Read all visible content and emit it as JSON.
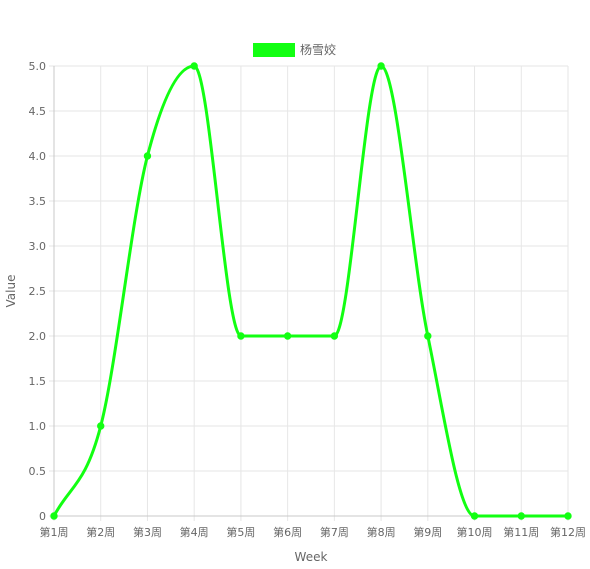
{
  "chart_data": {
    "type": "line",
    "categories": [
      "第1周",
      "第2周",
      "第3周",
      "第4周",
      "第5周",
      "第6周",
      "第7周",
      "第8周",
      "第9周",
      "第10周",
      "第11周",
      "第12周"
    ],
    "series": [
      {
        "name": "杨雪姣",
        "values": [
          0,
          1,
          4,
          5,
          2,
          2,
          2,
          5,
          2,
          0,
          0,
          0
        ],
        "color": "#12ff12"
      }
    ],
    "xlabel": "Week",
    "ylabel": "Value",
    "ylim": [
      0,
      5
    ],
    "yticks": [
      "0",
      "0.5",
      "1.0",
      "1.5",
      "2.0",
      "2.5",
      "3.0",
      "3.5",
      "4.0",
      "4.5",
      "5.0"
    ],
    "ytick_values": [
      0,
      0.5,
      1,
      1.5,
      2,
      2.5,
      3,
      3.5,
      4,
      4.5,
      5
    ],
    "grid": true,
    "legend_position": "top-center",
    "smooth": true
  }
}
